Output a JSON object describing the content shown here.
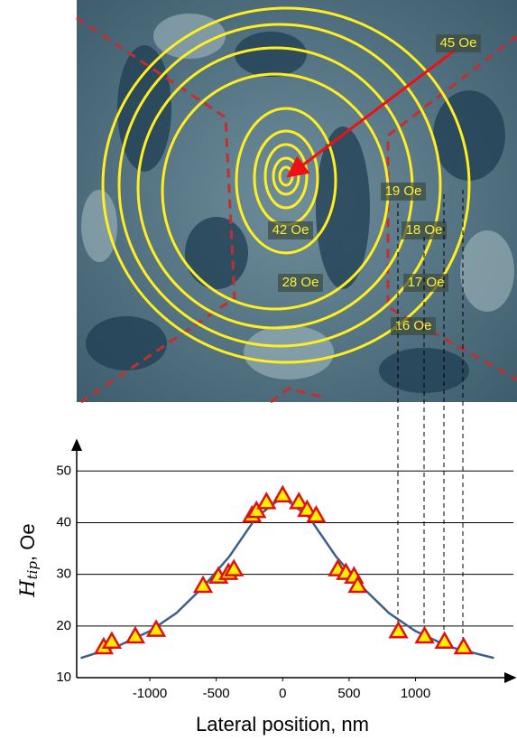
{
  "chart_data": {
    "type": "scatter",
    "xlabel": "Lateral position, nm",
    "ylabel": {
      "main": "H",
      "sub": "tip",
      "rest": ", Oe"
    },
    "annotations": [
      "45 Oe",
      "42 Oe",
      "28 Oe",
      "19 Oe",
      "18 Oe",
      "17 Oe",
      "16 Oe"
    ],
    "xlim": [
      -1550,
      1750
    ],
    "ylim": [
      10,
      56
    ],
    "xticks": [
      -1000,
      -500,
      0,
      500,
      1000
    ],
    "yticks": [
      10,
      20,
      30,
      40,
      50
    ],
    "grid": true,
    "series": [
      {
        "type": "line",
        "color": "#3e5f8a",
        "x": [
          -1520,
          -1250,
          -1000,
          -800,
          -600,
          -400,
          -200,
          0,
          200,
          400,
          600,
          800,
          1000,
          1250,
          1590
        ],
        "values": [
          13.8,
          16,
          19,
          22.5,
          27.5,
          33.5,
          41,
          45,
          41,
          33.5,
          27.5,
          22.5,
          19,
          16,
          13.8
        ]
      },
      {
        "type": "scatter",
        "color": "#ffee00",
        "edgecolor": "#e01010",
        "x": [
          -1347,
          -1286,
          -1109,
          -952,
          -599,
          -483,
          -408,
          -367,
          -231,
          -197,
          -122,
          0,
          122,
          184,
          252,
          415,
          476,
          537,
          565,
          871,
          1068,
          1218,
          1361
        ],
        "values": [
          15.9,
          17,
          18,
          19.3,
          27.8,
          29.6,
          30.3,
          31,
          41.4,
          42.3,
          44,
          45.3,
          44,
          42.5,
          41.4,
          31,
          30.3,
          29.6,
          27.8,
          19,
          18,
          17,
          15.9
        ]
      }
    ]
  }
}
